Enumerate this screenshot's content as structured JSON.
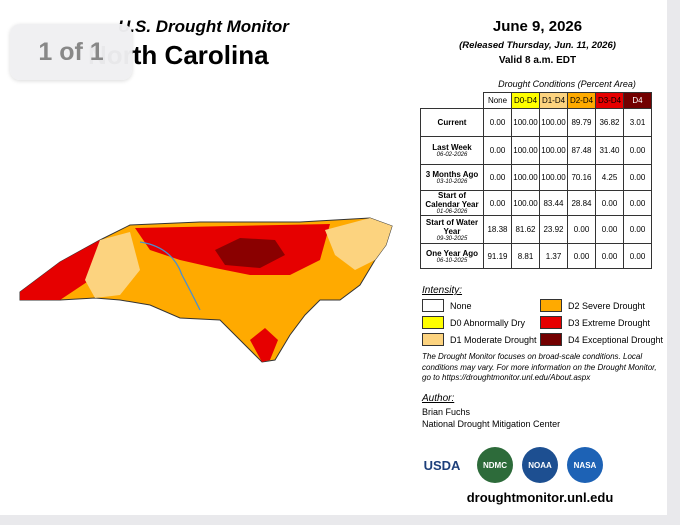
{
  "overlay": {
    "pager": "1 of 1"
  },
  "header": {
    "title": "U.S. Drought Monitor",
    "state": "North Carolina",
    "date": "June 9, 2026",
    "released": "(Released Thursday, Jun. 11, 2026)",
    "valid": "Valid 8 a.m. EDT"
  },
  "table": {
    "title": "Drought Conditions (Percent Area)",
    "columns": [
      "None",
      "D0-D4",
      "D1-D4",
      "D2-D4",
      "D3-D4",
      "D4"
    ],
    "rows": [
      {
        "label": "Current",
        "date": null,
        "values": [
          "0.00",
          "100.00",
          "100.00",
          "89.79",
          "36.82",
          "3.01"
        ]
      },
      {
        "label": "Last Week",
        "date": "06-02-2026",
        "values": [
          "0.00",
          "100.00",
          "100.00",
          "87.48",
          "31.40",
          "0.00"
        ]
      },
      {
        "label": "3 Months Ago",
        "date": "03-10-2026",
        "values": [
          "0.00",
          "100.00",
          "100.00",
          "70.16",
          "4.25",
          "0.00"
        ]
      },
      {
        "label": "Start of Calendar Year",
        "date": "01-06-2026",
        "values": [
          "0.00",
          "100.00",
          "83.44",
          "28.84",
          "0.00",
          "0.00"
        ]
      },
      {
        "label": "Start of Water Year",
        "date": "09-30-2025",
        "values": [
          "18.38",
          "81.62",
          "23.92",
          "0.00",
          "0.00",
          "0.00"
        ]
      },
      {
        "label": "One Year Ago",
        "date": "06-10-2025",
        "values": [
          "91.19",
          "8.81",
          "1.37",
          "0.00",
          "0.00",
          "0.00"
        ]
      }
    ]
  },
  "legend": {
    "title": "Intensity:",
    "items": [
      {
        "label": "None",
        "color": "#ffffff"
      },
      {
        "label": "D0 Abnormally Dry",
        "color": "#ffff00"
      },
      {
        "label": "D1 Moderate Drought",
        "color": "#fcd37f"
      },
      {
        "label": "D2 Severe Drought",
        "color": "#ffaa00"
      },
      {
        "label": "D3 Extreme Drought",
        "color": "#e60000"
      },
      {
        "label": "D4 Exceptional Drought",
        "color": "#730000"
      }
    ]
  },
  "note": "The Drought Monitor focuses on broad-scale conditions. Local conditions may vary. For more information on the Drought Monitor, go to https://droughtmonitor.unl.edu/About.aspx",
  "author": {
    "title": "Author:",
    "name": "Brian Fuchs",
    "org": "National Drought Mitigation Center"
  },
  "logos": [
    "USDA",
    "NDMC",
    "NOAA",
    "NASA"
  ],
  "url": "droughtmonitor.unl.edu"
}
